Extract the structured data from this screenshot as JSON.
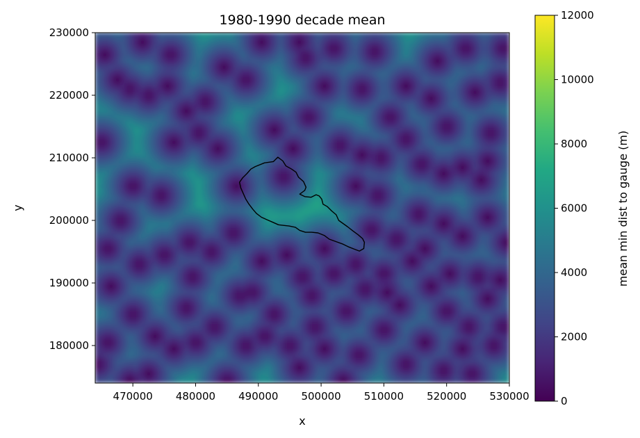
{
  "chart_data": {
    "type": "heatmap",
    "title": "1980-1990 decade mean",
    "xlabel": "x",
    "ylabel": "y",
    "xlim": [
      464000,
      530000
    ],
    "ylim": [
      174000,
      230000
    ],
    "x_ticks": [
      {
        "value": 470000,
        "label": "470000"
      },
      {
        "value": 480000,
        "label": "480000"
      },
      {
        "value": 490000,
        "label": "490000"
      },
      {
        "value": 500000,
        "label": "500000"
      },
      {
        "value": 510000,
        "label": "510000"
      },
      {
        "value": 520000,
        "label": "520000"
      },
      {
        "value": 530000,
        "label": "530000"
      }
    ],
    "y_ticks": [
      {
        "value": 180000,
        "label": "180000"
      },
      {
        "value": 190000,
        "label": "190000"
      },
      {
        "value": 200000,
        "label": "200000"
      },
      {
        "value": 210000,
        "label": "210000"
      },
      {
        "value": 220000,
        "label": "220000"
      },
      {
        "value": 230000,
        "label": "230000"
      }
    ],
    "colorbar": {
      "label": "mean min dist to gauge (m)",
      "colormap": "viridis",
      "vmin": 0,
      "vmax": 12000,
      "ticks": [
        {
          "value": 0,
          "label": "0"
        },
        {
          "value": 2000,
          "label": "2000"
        },
        {
          "value": 4000,
          "label": "4000"
        },
        {
          "value": 6000,
          "label": "6000"
        },
        {
          "value": 8000,
          "label": "8000"
        },
        {
          "value": 10000,
          "label": "10000"
        },
        {
          "value": 12000,
          "label": "12000"
        }
      ]
    },
    "gauges": [
      [
        467500,
        222500
      ],
      [
        469500,
        221000
      ],
      [
        472500,
        220000
      ],
      [
        475500,
        221500
      ],
      [
        478500,
        217500
      ],
      [
        480500,
        214000
      ],
      [
        465000,
        212500
      ],
      [
        468000,
        200000
      ],
      [
        466000,
        195500
      ],
      [
        471000,
        193000
      ],
      [
        475000,
        194500
      ],
      [
        479000,
        196500
      ],
      [
        482500,
        195000
      ],
      [
        486000,
        198000
      ],
      [
        486500,
        205500
      ],
      [
        492500,
        214500
      ],
      [
        495500,
        211500
      ],
      [
        494000,
        207000
      ],
      [
        497500,
        226000
      ],
      [
        496500,
        228500
      ],
      [
        506500,
        221000
      ],
      [
        503000,
        212000
      ],
      [
        498000,
        216500
      ],
      [
        513500,
        221500
      ],
      [
        511000,
        216500
      ],
      [
        509500,
        210000
      ],
      [
        506500,
        210500
      ],
      [
        516000,
        209000
      ],
      [
        519500,
        207500
      ],
      [
        522500,
        208500
      ],
      [
        525500,
        206500
      ],
      [
        520000,
        215000
      ],
      [
        528500,
        222000
      ],
      [
        523000,
        227500
      ],
      [
        518500,
        225500
      ],
      [
        515500,
        201000
      ],
      [
        512000,
        197000
      ],
      [
        516500,
        195500
      ],
      [
        519500,
        199500
      ],
      [
        522500,
        197500
      ],
      [
        526500,
        200500
      ],
      [
        529500,
        196500
      ],
      [
        514500,
        193500
      ],
      [
        510500,
        188500
      ],
      [
        507000,
        189000
      ],
      [
        504000,
        185500
      ],
      [
        498500,
        188000
      ],
      [
        492500,
        185000
      ],
      [
        489000,
        188500
      ],
      [
        490500,
        193500
      ],
      [
        494500,
        194500
      ],
      [
        499000,
        183000
      ],
      [
        495000,
        180000
      ],
      [
        496500,
        176500
      ],
      [
        500500,
        179500
      ],
      [
        503500,
        174500
      ],
      [
        506000,
        178500
      ],
      [
        510000,
        182500
      ],
      [
        513500,
        177000
      ],
      [
        516500,
        180500
      ],
      [
        520000,
        185500
      ],
      [
        523500,
        183000
      ],
      [
        526500,
        187500
      ],
      [
        529000,
        183000
      ],
      [
        527500,
        180000
      ],
      [
        522500,
        179500
      ],
      [
        519500,
        176000
      ],
      [
        524000,
        175500
      ],
      [
        512500,
        186500
      ],
      [
        517500,
        189500
      ],
      [
        520500,
        191500
      ],
      [
        525000,
        191000
      ],
      [
        528500,
        190500
      ],
      [
        485000,
        174500
      ],
      [
        480000,
        180500
      ],
      [
        476500,
        179500
      ],
      [
        473500,
        181500
      ],
      [
        470000,
        185000
      ],
      [
        466000,
        180500
      ],
      [
        464500,
        177000
      ],
      [
        472500,
        175500
      ],
      [
        469500,
        174500
      ],
      [
        483000,
        183000
      ],
      [
        487000,
        188000
      ],
      [
        478500,
        186000
      ],
      [
        488000,
        180000
      ],
      [
        491000,
        181500
      ],
      [
        502000,
        191500
      ],
      [
        500500,
        195500
      ],
      [
        505500,
        193000
      ],
      [
        508000,
        198500
      ],
      [
        497000,
        191000
      ],
      [
        481500,
        219000
      ],
      [
        484500,
        224500
      ],
      [
        476000,
        226500
      ],
      [
        471500,
        228500
      ],
      [
        465500,
        226500
      ],
      [
        500500,
        221500
      ],
      [
        502000,
        227500
      ],
      [
        508500,
        227000
      ],
      [
        517500,
        219500
      ],
      [
        524500,
        220500
      ],
      [
        527000,
        214000
      ],
      [
        513500,
        213000
      ],
      [
        490500,
        228500
      ],
      [
        488000,
        222500
      ],
      [
        470000,
        205500
      ],
      [
        474500,
        204000
      ],
      [
        476500,
        212500
      ],
      [
        483500,
        211500
      ],
      [
        509000,
        204000
      ],
      [
        505500,
        205500
      ],
      [
        529000,
        227500
      ],
      [
        466500,
        189500
      ],
      [
        479500,
        191000
      ],
      [
        510000,
        191500
      ],
      [
        526500,
        209500
      ]
    ],
    "catchment_outline": [
      [
        489500,
        208600
      ],
      [
        491000,
        209200
      ],
      [
        492400,
        209400
      ],
      [
        493100,
        210100
      ],
      [
        493900,
        209500
      ],
      [
        494400,
        208700
      ],
      [
        495300,
        208200
      ],
      [
        496000,
        207700
      ],
      [
        496400,
        206900
      ],
      [
        497200,
        206200
      ],
      [
        497600,
        205300
      ],
      [
        497400,
        204800
      ],
      [
        497000,
        204500
      ],
      [
        496600,
        204200
      ],
      [
        497400,
        203800
      ],
      [
        498400,
        203700
      ],
      [
        499200,
        204100
      ],
      [
        499700,
        203900
      ],
      [
        500100,
        203400
      ],
      [
        500300,
        202600
      ],
      [
        501000,
        202200
      ],
      [
        501700,
        201500
      ],
      [
        502400,
        200900
      ],
      [
        502800,
        200000
      ],
      [
        503500,
        199500
      ],
      [
        504200,
        199000
      ],
      [
        505100,
        198300
      ],
      [
        505900,
        197700
      ],
      [
        506600,
        197100
      ],
      [
        506900,
        196500
      ],
      [
        506800,
        195500
      ],
      [
        506100,
        195100
      ],
      [
        505300,
        195400
      ],
      [
        504300,
        195800
      ],
      [
        503500,
        196200
      ],
      [
        502400,
        196600
      ],
      [
        501300,
        197000
      ],
      [
        500500,
        197600
      ],
      [
        499500,
        198000
      ],
      [
        498500,
        198100
      ],
      [
        497500,
        198100
      ],
      [
        496600,
        198400
      ],
      [
        495900,
        198900
      ],
      [
        494900,
        199100
      ],
      [
        494000,
        199200
      ],
      [
        493200,
        199300
      ],
      [
        492300,
        199700
      ],
      [
        491400,
        200100
      ],
      [
        490500,
        200500
      ],
      [
        489700,
        201100
      ],
      [
        489100,
        201800
      ],
      [
        488500,
        202600
      ],
      [
        488000,
        203400
      ],
      [
        487600,
        204300
      ],
      [
        487200,
        205200
      ],
      [
        487000,
        206100
      ],
      [
        487500,
        206800
      ],
      [
        488200,
        207500
      ],
      [
        488800,
        208200
      ]
    ]
  }
}
